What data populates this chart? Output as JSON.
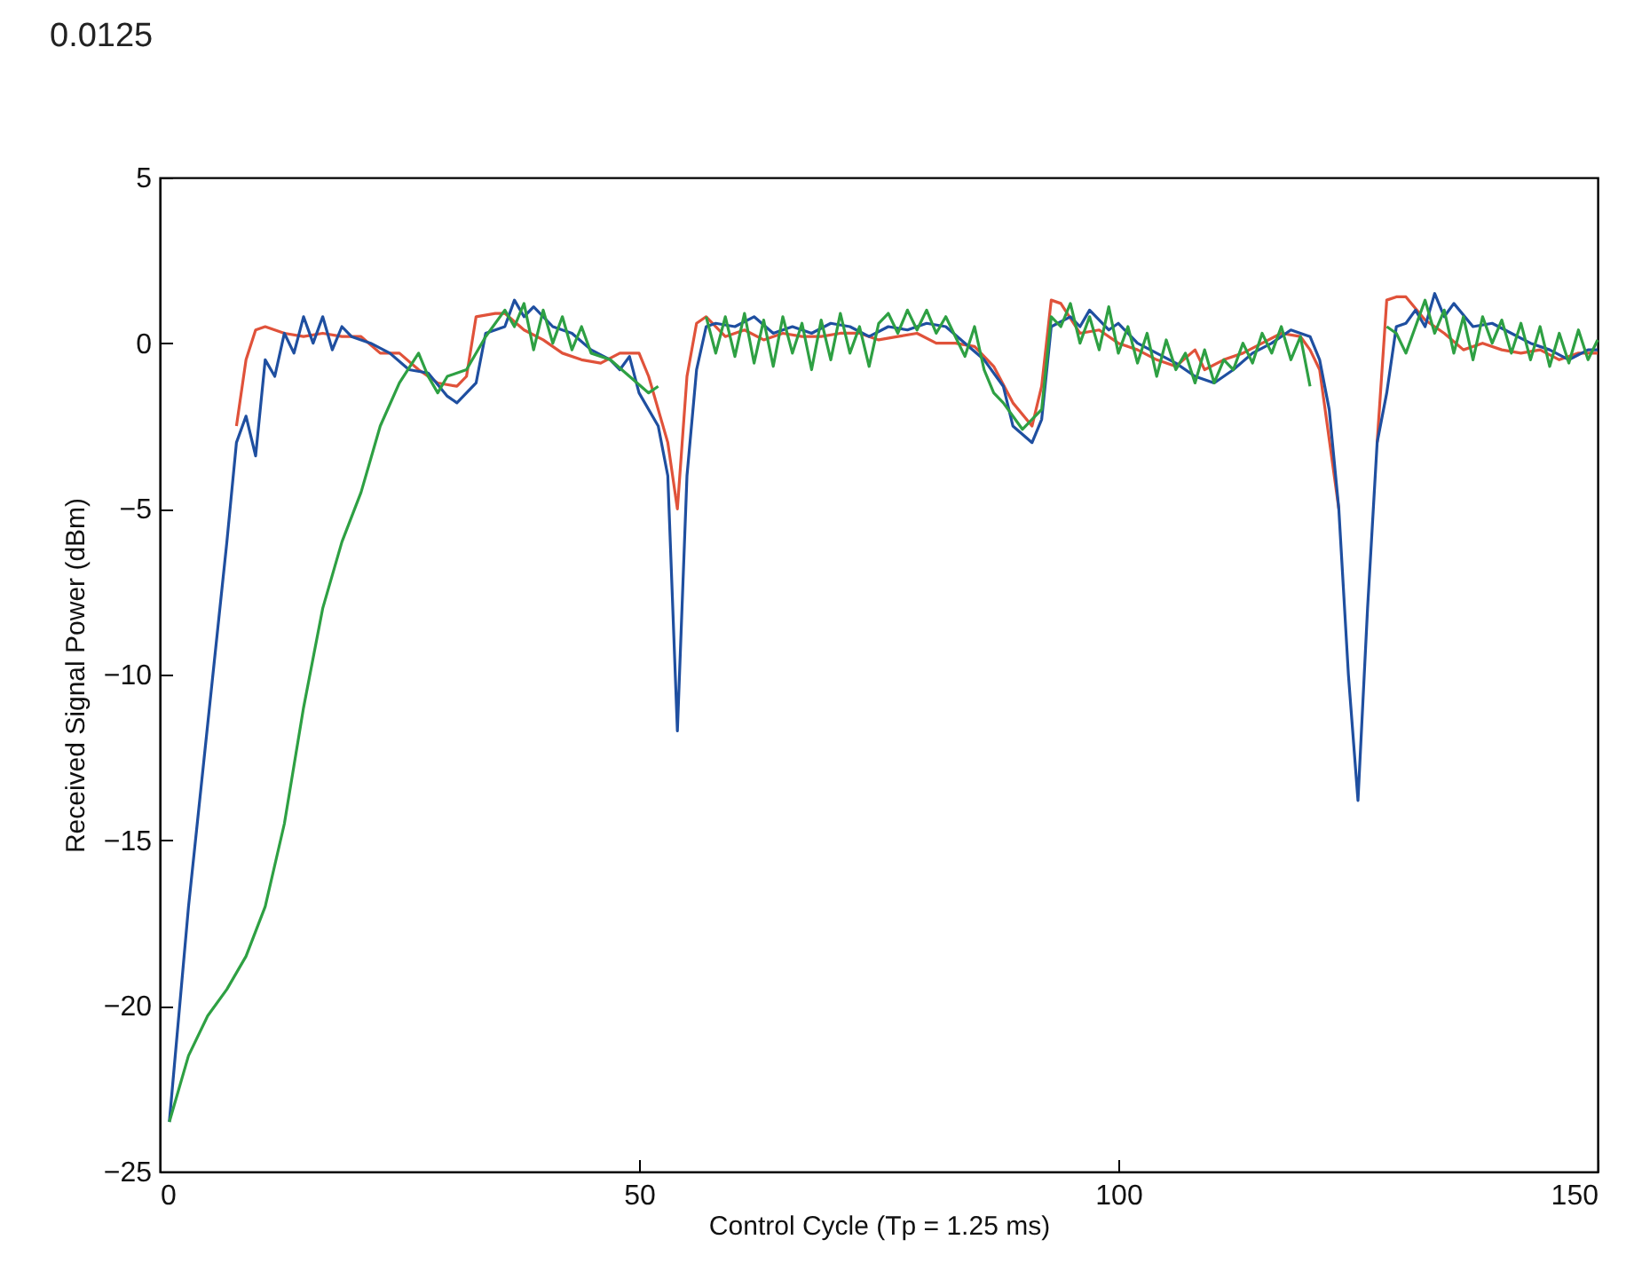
{
  "chart_data": {
    "type": "line",
    "xlabel": "Control Cycle (Tp = 1.25 ms)",
    "ylabel": "Received Signal Power (dBm)",
    "annotations": [
      "0.0125"
    ],
    "xlim": [
      0,
      150
    ],
    "xticks": [
      0,
      50,
      100,
      150
    ],
    "ylim": [
      -25,
      5
    ],
    "yticks": [
      -25,
      -20,
      -15,
      -10,
      -5,
      0,
      5
    ],
    "grid": false,
    "legend": false,
    "marker": "none",
    "line_style": "solid",
    "series": [
      {
        "color": "#e0523a",
        "x": [
          8,
          9,
          10,
          11,
          13,
          15,
          17,
          19,
          21,
          23,
          25,
          27,
          29,
          31,
          32,
          33,
          35,
          36,
          38,
          40,
          42,
          44,
          46,
          48,
          50,
          51,
          53,
          54,
          55,
          56,
          57,
          59,
          61,
          63,
          65,
          67,
          69,
          71,
          73,
          75,
          77,
          79,
          81,
          83,
          85,
          87,
          89,
          91,
          92,
          93,
          94,
          96,
          98,
          100,
          102,
          104,
          106,
          108,
          109,
          111,
          113,
          115,
          117,
          119,
          120,
          121,
          123,
          125,
          127,
          128,
          129,
          130,
          132,
          134,
          136,
          138,
          140,
          142,
          144,
          146,
          148,
          150
        ],
        "values": [
          -2.5,
          -0.5,
          0.4,
          0.5,
          0.3,
          0.2,
          0.3,
          0.2,
          0.2,
          -0.3,
          -0.3,
          -0.8,
          -1.2,
          -1.3,
          -1,
          0.8,
          0.9,
          0.9,
          0.4,
          0.1,
          -0.3,
          -0.5,
          -0.6,
          -0.3,
          -0.3,
          -1,
          -3,
          -5,
          -1,
          0.6,
          0.8,
          0.2,
          0.4,
          0.1,
          0.3,
          0.2,
          0.2,
          0.3,
          0.3,
          0.1,
          0.2,
          0.3,
          0,
          0,
          -0.1,
          -0.7,
          -1.8,
          -2.5,
          -1.3,
          1.3,
          1.2,
          0.3,
          0.4,
          0,
          -0.2,
          -0.5,
          -0.7,
          -0.2,
          -0.8,
          -0.5,
          -0.3,
          0,
          0.3,
          0.2,
          -0.2,
          -0.8,
          -5,
          null,
          -3,
          1.3,
          1.4,
          1.4,
          0.7,
          0.3,
          -0.2,
          0,
          -0.2,
          -0.3,
          -0.2,
          -0.5,
          -0.3,
          -0.3
        ]
      },
      {
        "color": "#1f4fa0",
        "x": [
          1,
          3,
          5,
          7,
          8,
          9,
          10,
          11,
          12,
          13,
          14,
          15,
          16,
          17,
          18,
          19,
          20,
          22,
          24,
          26,
          28,
          30,
          31,
          33,
          34,
          36,
          37,
          38,
          39,
          41,
          43,
          45,
          47,
          48,
          49,
          50,
          52,
          53,
          54,
          55,
          56,
          57,
          58,
          60,
          62,
          64,
          66,
          68,
          70,
          72,
          74,
          76,
          78,
          80,
          82,
          84,
          86,
          88,
          89,
          91,
          92,
          93,
          95,
          96,
          97,
          99,
          100,
          102,
          104,
          106,
          108,
          110,
          112,
          114,
          116,
          118,
          120,
          121,
          122,
          123,
          124,
          125,
          126,
          127,
          128,
          129,
          130,
          131,
          132,
          133,
          134,
          135,
          137,
          139,
          141,
          143,
          145,
          147,
          149,
          150
        ],
        "values": [
          -23.5,
          -17,
          -11.5,
          -6,
          -3,
          -2.2,
          -3.4,
          -0.5,
          -1,
          0.3,
          -0.3,
          0.8,
          0,
          0.8,
          -0.2,
          0.5,
          0.2,
          0,
          -0.3,
          -0.8,
          -0.9,
          -1.6,
          -1.8,
          -1.2,
          0.3,
          0.5,
          1.3,
          0.8,
          1.1,
          0.5,
          0.3,
          -0.2,
          -0.5,
          -0.8,
          -0.4,
          -1.5,
          -2.5,
          -4,
          -11.7,
          -4,
          -0.8,
          0.5,
          0.6,
          0.5,
          0.8,
          0.3,
          0.5,
          0.3,
          0.6,
          0.5,
          0.2,
          0.5,
          0.4,
          0.6,
          0.5,
          0,
          -0.5,
          -1.3,
          -2.5,
          -3,
          -2.3,
          0.5,
          0.8,
          0.5,
          1,
          0.4,
          0.6,
          0,
          -0.3,
          -0.6,
          -1,
          -1.2,
          -0.8,
          -0.3,
          0,
          0.4,
          0.2,
          -0.5,
          -2,
          -5,
          -10,
          -13.8,
          -8,
          -3,
          -1.5,
          0.5,
          0.6,
          1,
          0.5,
          1.5,
          0.8,
          1.2,
          0.5,
          0.6,
          0.3,
          0,
          -0.2,
          -0.5,
          -0.2,
          -0.2
        ]
      },
      {
        "color": "#2ea043",
        "x": [
          1,
          3,
          5,
          7,
          9,
          11,
          13,
          15,
          17,
          19,
          21,
          23,
          25,
          27,
          28,
          29,
          30,
          32,
          34,
          36,
          37,
          38,
          39,
          40,
          41,
          42,
          43,
          44,
          45,
          47,
          49,
          51,
          52,
          53,
          57,
          58,
          59,
          60,
          61,
          62,
          63,
          64,
          65,
          66,
          67,
          68,
          69,
          70,
          71,
          72,
          73,
          74,
          75,
          76,
          77,
          78,
          79,
          80,
          81,
          82,
          83,
          84,
          85,
          86,
          87,
          88,
          90,
          92,
          93,
          94,
          95,
          96,
          97,
          98,
          99,
          100,
          101,
          102,
          103,
          104,
          105,
          106,
          107,
          108,
          109,
          110,
          111,
          112,
          113,
          114,
          115,
          116,
          117,
          118,
          119,
          120,
          121,
          128,
          129,
          130,
          131,
          132,
          133,
          134,
          135,
          136,
          137,
          138,
          139,
          140,
          141,
          142,
          143,
          144,
          145,
          146,
          147,
          148,
          149,
          150
        ],
        "values": [
          -23.5,
          -21.5,
          -20.3,
          -19.5,
          -18.5,
          -17,
          -14.5,
          -11,
          -8,
          -6,
          -4.5,
          -2.5,
          -1.2,
          -0.3,
          -1,
          -1.5,
          -1,
          -0.8,
          0.2,
          1,
          0.5,
          1.2,
          -0.2,
          1,
          0,
          0.8,
          -0.2,
          0.5,
          -0.3,
          -0.5,
          -1,
          -1.5,
          -1.3,
          null,
          0.8,
          -0.3,
          0.8,
          -0.4,
          0.9,
          -0.6,
          0.7,
          -0.7,
          0.8,
          -0.3,
          0.6,
          -0.8,
          0.7,
          -0.5,
          0.9,
          -0.3,
          0.5,
          -0.7,
          0.6,
          0.9,
          0.3,
          1,
          0.4,
          1,
          0.3,
          0.8,
          0.2,
          -0.4,
          0.5,
          -0.8,
          -1.5,
          -1.8,
          -2.6,
          -2,
          0.8,
          0.5,
          1.2,
          0,
          0.8,
          -0.2,
          1.1,
          -0.3,
          0.5,
          -0.6,
          0.3,
          -1,
          0.1,
          -0.8,
          -0.3,
          -1.2,
          -0.2,
          -1.2,
          -0.5,
          -0.8,
          0,
          -0.6,
          0.3,
          -0.3,
          0.5,
          -0.5,
          0.2,
          -1.3,
          null,
          0.5,
          0.3,
          -0.3,
          0.5,
          1.3,
          0.3,
          1,
          -0.3,
          0.8,
          -0.5,
          0.8,
          0,
          0.7,
          -0.3,
          0.6,
          -0.5,
          0.5,
          -0.7,
          0.3,
          -0.6,
          0.4,
          -0.5,
          0.1
        ]
      }
    ]
  }
}
